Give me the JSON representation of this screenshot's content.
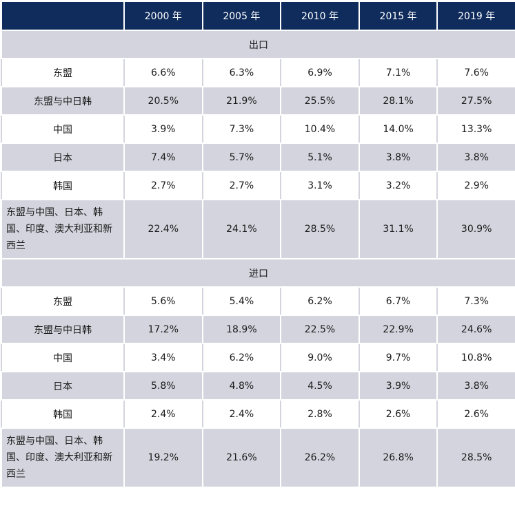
{
  "table": {
    "headers": [
      "",
      "2000 年",
      "2005 年",
      "2010 年",
      "2015 年",
      "2019 年"
    ],
    "sections": [
      {
        "title": "出口",
        "rows": [
          {
            "label": "东盟",
            "values": [
              "6.6%",
              "6.3%",
              "6.9%",
              "7.1%",
              "7.6%"
            ]
          },
          {
            "label": "东盟与中日韩",
            "values": [
              "20.5%",
              "21.9%",
              "25.5%",
              "28.1%",
              "27.5%"
            ]
          },
          {
            "label": "中国",
            "values": [
              "3.9%",
              "7.3%",
              "10.4%",
              "14.0%",
              "13.3%"
            ]
          },
          {
            "label": "日本",
            "values": [
              "7.4%",
              "5.7%",
              "5.1%",
              "3.8%",
              "3.8%"
            ]
          },
          {
            "label": "韩国",
            "values": [
              "2.7%",
              "2.7%",
              "3.1%",
              "3.2%",
              "2.9%"
            ]
          },
          {
            "label": "东盟与中国、日本、韩国、印度、澳大利亚和新西兰",
            "values": [
              "22.4%",
              "24.1%",
              "28.5%",
              "31.1%",
              "30.9%"
            ]
          }
        ]
      },
      {
        "title": "进口",
        "rows": [
          {
            "label": "东盟",
            "values": [
              "5.6%",
              "5.4%",
              "6.2%",
              "6.7%",
              "7.3%"
            ]
          },
          {
            "label": "东盟与中日韩",
            "values": [
              "17.2%",
              "18.9%",
              "22.5%",
              "22.9%",
              "24.6%"
            ]
          },
          {
            "label": "中国",
            "values": [
              "3.4%",
              "6.2%",
              "9.0%",
              "9.7%",
              "10.8%"
            ]
          },
          {
            "label": "日本",
            "values": [
              "5.8%",
              "4.8%",
              "4.5%",
              "3.9%",
              "3.8%"
            ]
          },
          {
            "label": "韩国",
            "values": [
              "2.4%",
              "2.4%",
              "2.8%",
              "2.6%",
              "2.6%"
            ]
          },
          {
            "label": "东盟与中国、日本、韩国、印度、澳大利亚和新西兰",
            "values": [
              "19.2%",
              "21.6%",
              "26.2%",
              "26.8%",
              "28.5%"
            ]
          }
        ]
      }
    ]
  }
}
